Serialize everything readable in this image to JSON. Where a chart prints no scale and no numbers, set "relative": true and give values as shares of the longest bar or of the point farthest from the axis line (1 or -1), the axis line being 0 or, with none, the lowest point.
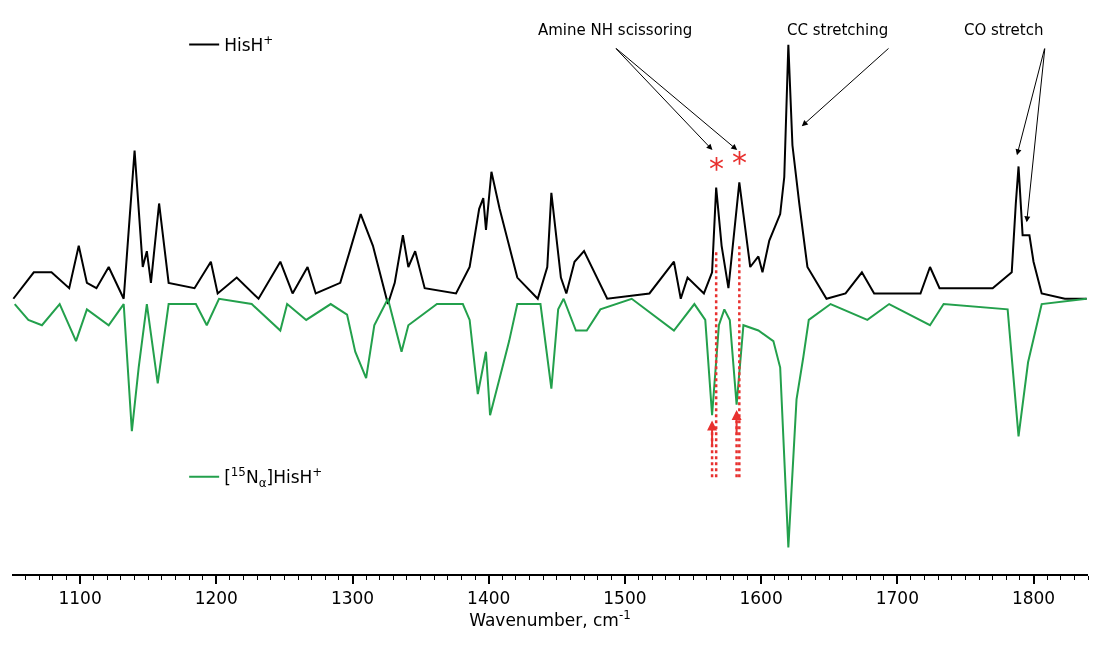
{
  "chart_data": {
    "type": "line",
    "relative": true,
    "xlabel": "Wavenumber, cm$^{-1}$",
    "xlim": [
      1050,
      1840
    ],
    "xticks": [
      1100,
      1200,
      1300,
      1400,
      1500,
      1600,
      1700,
      1800,
      {
        "value": 1060,
        "label": null
      },
      {
        "value": 1070,
        "label": null
      },
      {
        "value": 1080,
        "label": null
      },
      {
        "value": 1090,
        "label": null
      },
      {
        "value": 1110,
        "label": null
      },
      {
        "value": 1120,
        "label": null
      },
      {
        "value": 1130,
        "label": null
      },
      {
        "value": 1140,
        "label": null
      },
      {
        "value": 1150,
        "label": null
      },
      {
        "value": 1160,
        "label": null
      },
      {
        "value": 1170,
        "label": null
      },
      {
        "value": 1180,
        "label": null
      },
      {
        "value": 1190,
        "label": null
      },
      {
        "value": 1210,
        "label": null
      },
      {
        "value": 1220,
        "label": null
      },
      {
        "value": 1230,
        "label": null
      },
      {
        "value": 1240,
        "label": null
      },
      {
        "value": 1250,
        "label": null
      },
      {
        "value": 1260,
        "label": null
      },
      {
        "value": 1270,
        "label": null
      },
      {
        "value": 1280,
        "label": null
      },
      {
        "value": 1290,
        "label": null
      },
      {
        "value": 1310,
        "label": null
      },
      {
        "value": 1320,
        "label": null
      },
      {
        "value": 1330,
        "label": null
      },
      {
        "value": 1340,
        "label": null
      },
      {
        "value": 1350,
        "label": null
      },
      {
        "value": 1360,
        "label": null
      },
      {
        "value": 1370,
        "label": null
      },
      {
        "value": 1380,
        "label": null
      },
      {
        "value": 1390,
        "label": null
      },
      {
        "value": 1410,
        "label": null
      },
      {
        "value": 1420,
        "label": null
      },
      {
        "value": 1430,
        "label": null
      },
      {
        "value": 1440,
        "label": null
      },
      {
        "value": 1450,
        "label": null
      },
      {
        "value": 1460,
        "label": null
      },
      {
        "value": 1470,
        "label": null
      },
      {
        "value": 1480,
        "label": null
      },
      {
        "value": 1490,
        "label": null
      },
      {
        "value": 1510,
        "label": null
      },
      {
        "value": 1520,
        "label": null
      },
      {
        "value": 1530,
        "label": null
      },
      {
        "value": 1540,
        "label": null
      },
      {
        "value": 1550,
        "label": null
      },
      {
        "value": 1560,
        "label": null
      },
      {
        "value": 1570,
        "label": null
      },
      {
        "value": 1580,
        "label": null
      },
      {
        "value": 1590,
        "label": null
      },
      {
        "value": 1610,
        "label": null
      },
      {
        "value": 1620,
        "label": null
      },
      {
        "value": 1630,
        "label": null
      },
      {
        "value": 1640,
        "label": null
      },
      {
        "value": 1650,
        "label": null
      },
      {
        "value": 1660,
        "label": null
      },
      {
        "value": 1670,
        "label": null
      },
      {
        "value": 1680,
        "label": null
      },
      {
        "value": 1690,
        "label": null
      },
      {
        "value": 1710,
        "label": null
      },
      {
        "value": 1720,
        "label": null
      },
      {
        "value": 1730,
        "label": null
      },
      {
        "value": 1740,
        "label": null
      },
      {
        "value": 1750,
        "label": null
      },
      {
        "value": 1760,
        "label": null
      },
      {
        "value": 1770,
        "label": null
      },
      {
        "value": 1780,
        "label": null
      },
      {
        "value": 1790,
        "label": null
      },
      {
        "value": 1810,
        "label": null
      },
      {
        "value": 1820,
        "label": null
      },
      {
        "value": 1830,
        "label": null
      },
      {
        "value": 1840,
        "label": null
      }
    ],
    "tick_labels": "x",
    "legend": "left",
    "marker": "none",
    "line_style": "solid",
    "series": [
      {
        "name": "HisH$^{+}$",
        "color": "#000000",
        "x": [
          1051,
          1066,
          1079,
          1092,
          1099,
          1105,
          1112,
          1121,
          1132,
          1140,
          1146,
          1149,
          1152,
          1158,
          1165,
          1184,
          1196,
          1201,
          1215,
          1231,
          1247,
          1256,
          1267,
          1273,
          1291,
          1298,
          1306,
          1315,
          1326,
          1331,
          1337,
          1341,
          1346,
          1353,
          1376,
          1386,
          1393,
          1396,
          1398,
          1402,
          1408,
          1415,
          1421,
          1436,
          1443,
          1446,
          1453,
          1457,
          1463,
          1470,
          1487,
          1518,
          1536,
          1541,
          1546,
          1558,
          1564,
          1567,
          1571,
          1576,
          1584,
          1587,
          1592,
          1598,
          1601,
          1606,
          1614,
          1617,
          1620,
          1623,
          1628,
          1634,
          1648,
          1662,
          1674,
          1683,
          1717,
          1724,
          1731,
          1770,
          1784,
          1787,
          1789,
          1792,
          1797,
          1800,
          1806,
          1823,
          1839
        ],
        "values": [
          0.52,
          0.57,
          0.57,
          0.54,
          0.62,
          0.55,
          0.54,
          0.58,
          0.52,
          0.8,
          0.58,
          0.61,
          0.55,
          0.7,
          0.55,
          0.54,
          0.59,
          0.53,
          0.56,
          0.52,
          0.59,
          0.53,
          0.58,
          0.53,
          0.55,
          0.61,
          0.68,
          0.62,
          0.51,
          0.55,
          0.64,
          0.58,
          0.61,
          0.54,
          0.53,
          0.58,
          0.69,
          0.71,
          0.65,
          0.76,
          0.69,
          0.62,
          0.56,
          0.52,
          0.58,
          0.72,
          0.56,
          0.53,
          0.59,
          0.61,
          0.52,
          0.53,
          0.59,
          0.52,
          0.56,
          0.53,
          0.57,
          0.73,
          0.62,
          0.54,
          0.74,
          0.68,
          0.58,
          0.6,
          0.57,
          0.63,
          0.68,
          0.75,
          1.0,
          0.81,
          0.7,
          0.58,
          0.52,
          0.53,
          0.57,
          0.53,
          0.53,
          0.58,
          0.54,
          0.54,
          0.57,
          0.7,
          0.77,
          0.64,
          0.64,
          0.59,
          0.53,
          0.52,
          0.52
        ]
      },
      {
        "name": "[$^{15}$N$_{α}$]HisH$^{+}$",
        "color": "#23a04c",
        "x": [
          1052,
          1062,
          1072,
          1085,
          1097,
          1105,
          1121,
          1132,
          1138,
          1143,
          1149,
          1157,
          1165,
          1185,
          1193,
          1202,
          1226,
          1247,
          1252,
          1266,
          1284,
          1296,
          1302,
          1310,
          1316,
          1326,
          1336,
          1341,
          1362,
          1381,
          1386,
          1392,
          1398,
          1401,
          1408,
          1415,
          1421,
          1438,
          1446,
          1451,
          1455,
          1464,
          1472,
          1482,
          1505,
          1536,
          1551,
          1559,
          1564,
          1569,
          1573,
          1577,
          1582,
          1587,
          1598,
          1609,
          1614,
          1620,
          1626,
          1631,
          1635,
          1651,
          1678,
          1694,
          1724,
          1734,
          1781,
          1789,
          1796,
          1806,
          1839
        ],
        "values": [
          0.51,
          0.48,
          0.47,
          0.51,
          0.44,
          0.5,
          0.47,
          0.51,
          0.27,
          0.39,
          0.51,
          0.36,
          0.51,
          0.51,
          0.47,
          0.52,
          0.51,
          0.46,
          0.51,
          0.48,
          0.51,
          0.49,
          0.42,
          0.37,
          0.47,
          0.52,
          0.42,
          0.47,
          0.51,
          0.51,
          0.48,
          0.34,
          0.42,
          0.3,
          0.37,
          0.44,
          0.51,
          0.51,
          0.35,
          0.5,
          0.52,
          0.46,
          0.46,
          0.5,
          0.52,
          0.46,
          0.51,
          0.48,
          0.3,
          0.47,
          0.5,
          0.48,
          0.32,
          0.47,
          0.46,
          0.44,
          0.39,
          0.05,
          0.33,
          0.41,
          0.48,
          0.51,
          0.48,
          0.51,
          0.47,
          0.51,
          0.5,
          0.26,
          0.4,
          0.51,
          0.52
        ]
      }
    ],
    "ref_lines": [
      {
        "axis": "x",
        "value": 1567,
        "label": "*",
        "color": "#e8312f",
        "line_style": "dotted"
      },
      {
        "axis": "x",
        "value": 1584,
        "label": "*",
        "color": "#e8312f",
        "line_style": "dotted"
      },
      {
        "axis": "x",
        "value": 1564,
        "color": "#e8312f",
        "line_style": "dotted"
      },
      {
        "axis": "x",
        "value": 1582,
        "color": "#e8312f",
        "line_style": "dotted"
      }
    ],
    "annotations": [
      "Amine NH scissoring",
      "CC stretching",
      "CO stretch"
    ]
  }
}
